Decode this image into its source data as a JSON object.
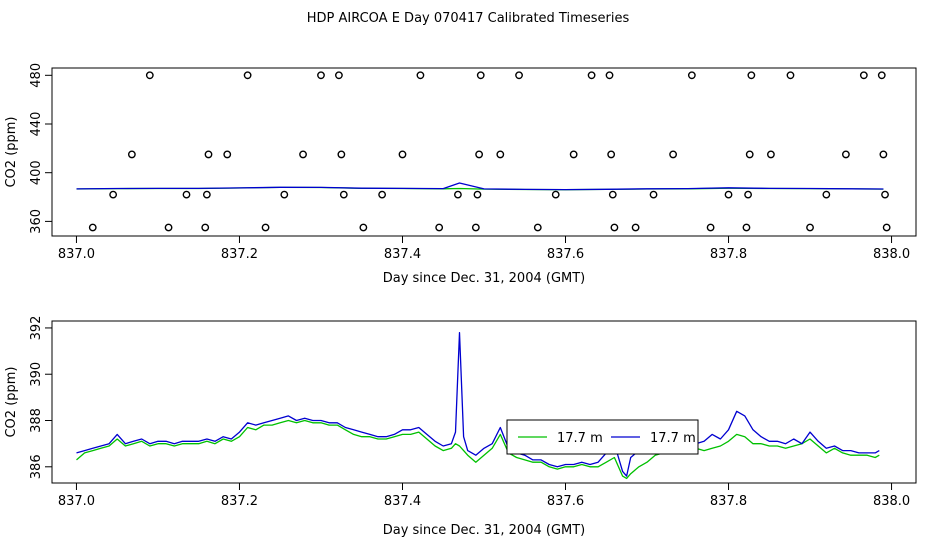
{
  "figure": {
    "title": "HDP AIRCOA E  Day 070417  Calibrated Timeseries"
  },
  "chart_data": [
    {
      "type": "line",
      "panel": "top",
      "xlabel": "Day since Dec. 31, 2004 (GMT)",
      "ylabel": "CO2 (ppm)",
      "xlim": [
        836.97,
        838.03
      ],
      "ylim": [
        348,
        486
      ],
      "xticks": [
        837.0,
        837.2,
        837.4,
        837.6,
        837.8,
        838.0
      ],
      "xtick_labels": [
        "837.0",
        "837.2",
        "837.4",
        "837.6",
        "837.8",
        "838.0"
      ],
      "yticks": [
        360,
        400,
        440,
        480
      ],
      "ytick_labels": [
        "360",
        "400",
        "440",
        "480"
      ],
      "grid": false,
      "series": [
        {
          "color": "#00c000",
          "marker": "line",
          "x": [
            837.0,
            837.05,
            837.1,
            837.15,
            837.2,
            837.25,
            837.3,
            837.35,
            837.4,
            837.45,
            837.47,
            837.5,
            837.55,
            837.6,
            837.65,
            837.7,
            837.75,
            837.8,
            837.85,
            837.9,
            837.95,
            837.99
          ],
          "y": [
            386.6,
            386.9,
            387.0,
            387.0,
            387.4,
            387.9,
            387.8,
            387.2,
            387.0,
            386.8,
            387.0,
            386.5,
            386.2,
            386.0,
            386.3,
            386.6,
            386.8,
            387.3,
            387.0,
            386.9,
            386.7,
            386.5
          ]
        },
        {
          "color": "#0000d0",
          "marker": "line",
          "x": [
            837.0,
            837.05,
            837.1,
            837.15,
            837.2,
            837.25,
            837.3,
            837.35,
            837.4,
            837.45,
            837.47,
            837.5,
            837.55,
            837.6,
            837.65,
            837.7,
            837.75,
            837.8,
            837.85,
            837.9,
            837.95,
            837.99
          ],
          "y": [
            386.7,
            387.0,
            387.1,
            387.1,
            387.5,
            388.0,
            387.9,
            387.3,
            387.1,
            386.9,
            391.5,
            386.7,
            386.3,
            386.1,
            386.4,
            386.8,
            386.9,
            387.6,
            387.1,
            387.0,
            386.8,
            386.6
          ]
        },
        {
          "color": "#000000",
          "marker": "open-circle",
          "x": [
            837.02,
            837.045,
            837.068,
            837.09,
            837.113,
            837.135,
            837.158,
            837.16,
            837.162,
            837.185,
            837.21,
            837.232,
            837.255,
            837.278,
            837.3,
            837.322,
            837.325,
            837.328,
            837.352,
            837.375,
            837.4,
            837.422,
            837.445,
            837.468,
            837.49,
            837.492,
            837.494,
            837.496,
            837.52,
            837.543,
            837.566,
            837.588,
            837.61,
            837.632,
            837.654,
            837.656,
            837.658,
            837.66,
            837.686,
            837.708,
            837.732,
            837.755,
            837.778,
            837.8,
            837.822,
            837.824,
            837.826,
            837.828,
            837.852,
            837.876,
            837.9,
            837.92,
            837.944,
            837.966,
            837.988,
            837.99,
            837.992,
            837.994
          ],
          "y": [
            355,
            382,
            415,
            480,
            355,
            382,
            355,
            382,
            415,
            415,
            480,
            355,
            382,
            415,
            480,
            480,
            415,
            382,
            355,
            382,
            415,
            480,
            355,
            382,
            355,
            382,
            415,
            480,
            415,
            480,
            355,
            382,
            415,
            480,
            480,
            415,
            382,
            355,
            355,
            382,
            415,
            480,
            355,
            382,
            355,
            382,
            415,
            480,
            415,
            480,
            355,
            382,
            415,
            480,
            480,
            415,
            382,
            355
          ]
        }
      ]
    },
    {
      "type": "line",
      "panel": "bottom",
      "xlabel": "Day since Dec. 31, 2004 (GMT)",
      "ylabel": "CO2 (ppm)",
      "xlim": [
        836.97,
        838.03
      ],
      "ylim": [
        385.3,
        392.3
      ],
      "xticks": [
        837.0,
        837.2,
        837.4,
        837.6,
        837.8,
        838.0
      ],
      "xtick_labels": [
        "837.0",
        "837.2",
        "837.4",
        "837.6",
        "837.8",
        "838.0"
      ],
      "yticks": [
        386,
        388,
        390,
        392
      ],
      "ytick_labels": [
        "386",
        "388",
        "390",
        "392"
      ],
      "grid": false,
      "legend_position": "center-right",
      "series": [
        {
          "name": "17.7 m",
          "color": "#00c000",
          "x": [
            837.0,
            837.01,
            837.02,
            837.03,
            837.04,
            837.05,
            837.06,
            837.07,
            837.08,
            837.09,
            837.1,
            837.11,
            837.12,
            837.13,
            837.14,
            837.15,
            837.16,
            837.17,
            837.18,
            837.19,
            837.2,
            837.21,
            837.22,
            837.23,
            837.24,
            837.25,
            837.26,
            837.27,
            837.28,
            837.29,
            837.3,
            837.31,
            837.32,
            837.33,
            837.34,
            837.35,
            837.36,
            837.37,
            837.38,
            837.39,
            837.4,
            837.41,
            837.42,
            837.43,
            837.44,
            837.45,
            837.46,
            837.465,
            837.47,
            837.475,
            837.48,
            837.49,
            837.5,
            837.51,
            837.52,
            837.53,
            837.54,
            837.55,
            837.56,
            837.57,
            837.58,
            837.59,
            837.6,
            837.61,
            837.62,
            837.63,
            837.64,
            837.65,
            837.66,
            837.67,
            837.675,
            837.68,
            837.69,
            837.7,
            837.71,
            837.72,
            837.73,
            837.74,
            837.75,
            837.76,
            837.77,
            837.78,
            837.79,
            837.8,
            837.81,
            837.82,
            837.83,
            837.84,
            837.85,
            837.86,
            837.87,
            837.88,
            837.89,
            837.9,
            837.91,
            837.92,
            837.93,
            837.94,
            837.95,
            837.96,
            837.97,
            837.98,
            837.985
          ],
          "y": [
            386.3,
            386.6,
            386.7,
            386.8,
            386.9,
            387.2,
            386.9,
            387.0,
            387.1,
            386.9,
            387.0,
            387.0,
            386.9,
            387.0,
            387.0,
            387.0,
            387.1,
            387.0,
            387.2,
            387.1,
            387.3,
            387.7,
            387.6,
            387.8,
            387.8,
            387.9,
            388.0,
            387.9,
            388.0,
            387.9,
            387.9,
            387.8,
            387.8,
            387.6,
            387.4,
            387.3,
            387.3,
            387.2,
            387.2,
            387.3,
            387.4,
            387.4,
            387.5,
            387.2,
            386.9,
            386.7,
            386.8,
            387.0,
            386.9,
            386.7,
            386.5,
            386.2,
            386.5,
            386.8,
            387.4,
            386.6,
            386.4,
            386.3,
            386.2,
            386.2,
            386.0,
            385.9,
            386.0,
            386.0,
            386.1,
            386.0,
            386.0,
            386.2,
            386.4,
            385.6,
            385.5,
            385.7,
            386.0,
            386.2,
            386.5,
            386.6,
            386.7,
            386.8,
            386.7,
            386.8,
            386.7,
            386.8,
            386.9,
            387.1,
            387.4,
            387.3,
            387.0,
            387.0,
            386.9,
            386.9,
            386.8,
            386.9,
            387.0,
            387.2,
            386.9,
            386.6,
            386.8,
            386.6,
            386.5,
            386.5,
            386.5,
            386.4,
            386.5
          ]
        },
        {
          "name": "17.7 m",
          "color": "#0000d0",
          "x": [
            837.0,
            837.01,
            837.02,
            837.03,
            837.04,
            837.05,
            837.06,
            837.07,
            837.08,
            837.09,
            837.1,
            837.11,
            837.12,
            837.13,
            837.14,
            837.15,
            837.16,
            837.17,
            837.18,
            837.19,
            837.2,
            837.21,
            837.22,
            837.23,
            837.24,
            837.25,
            837.26,
            837.27,
            837.28,
            837.29,
            837.3,
            837.31,
            837.32,
            837.33,
            837.34,
            837.35,
            837.36,
            837.37,
            837.38,
            837.39,
            837.4,
            837.41,
            837.42,
            837.43,
            837.44,
            837.45,
            837.46,
            837.465,
            837.47,
            837.475,
            837.48,
            837.49,
            837.5,
            837.51,
            837.52,
            837.53,
            837.54,
            837.55,
            837.56,
            837.57,
            837.58,
            837.59,
            837.6,
            837.61,
            837.62,
            837.63,
            837.64,
            837.65,
            837.66,
            837.67,
            837.675,
            837.68,
            837.69,
            837.7,
            837.71,
            837.72,
            837.73,
            837.74,
            837.75,
            837.76,
            837.77,
            837.78,
            837.79,
            837.8,
            837.81,
            837.82,
            837.83,
            837.84,
            837.85,
            837.86,
            837.87,
            837.88,
            837.89,
            837.9,
            837.91,
            837.92,
            837.93,
            837.94,
            837.95,
            837.96,
            837.97,
            837.98,
            837.985
          ],
          "y": [
            386.6,
            386.7,
            386.8,
            386.9,
            387.0,
            387.4,
            387.0,
            387.1,
            387.2,
            387.0,
            387.1,
            387.1,
            387.0,
            387.1,
            387.1,
            387.1,
            387.2,
            387.1,
            387.3,
            387.2,
            387.5,
            387.9,
            387.8,
            387.9,
            388.0,
            388.1,
            388.2,
            388.0,
            388.1,
            388.0,
            388.0,
            387.9,
            387.9,
            387.7,
            387.6,
            387.5,
            387.4,
            387.3,
            387.3,
            387.4,
            387.6,
            387.6,
            387.7,
            387.4,
            387.1,
            386.9,
            387.0,
            387.5,
            391.8,
            387.3,
            386.7,
            386.5,
            386.8,
            387.0,
            387.7,
            386.8,
            386.6,
            386.5,
            386.3,
            386.3,
            386.1,
            386.0,
            386.1,
            386.1,
            386.2,
            386.1,
            386.2,
            386.6,
            387.0,
            385.8,
            385.6,
            386.4,
            386.7,
            386.8,
            387.2,
            386.6,
            387.0,
            387.3,
            387.6,
            387.0,
            387.1,
            387.4,
            387.2,
            387.6,
            388.4,
            388.2,
            387.6,
            387.3,
            387.1,
            387.1,
            387.0,
            387.2,
            387.0,
            387.5,
            387.1,
            386.8,
            386.9,
            386.7,
            386.7,
            386.6,
            386.6,
            386.6,
            386.7
          ]
        }
      ]
    }
  ]
}
